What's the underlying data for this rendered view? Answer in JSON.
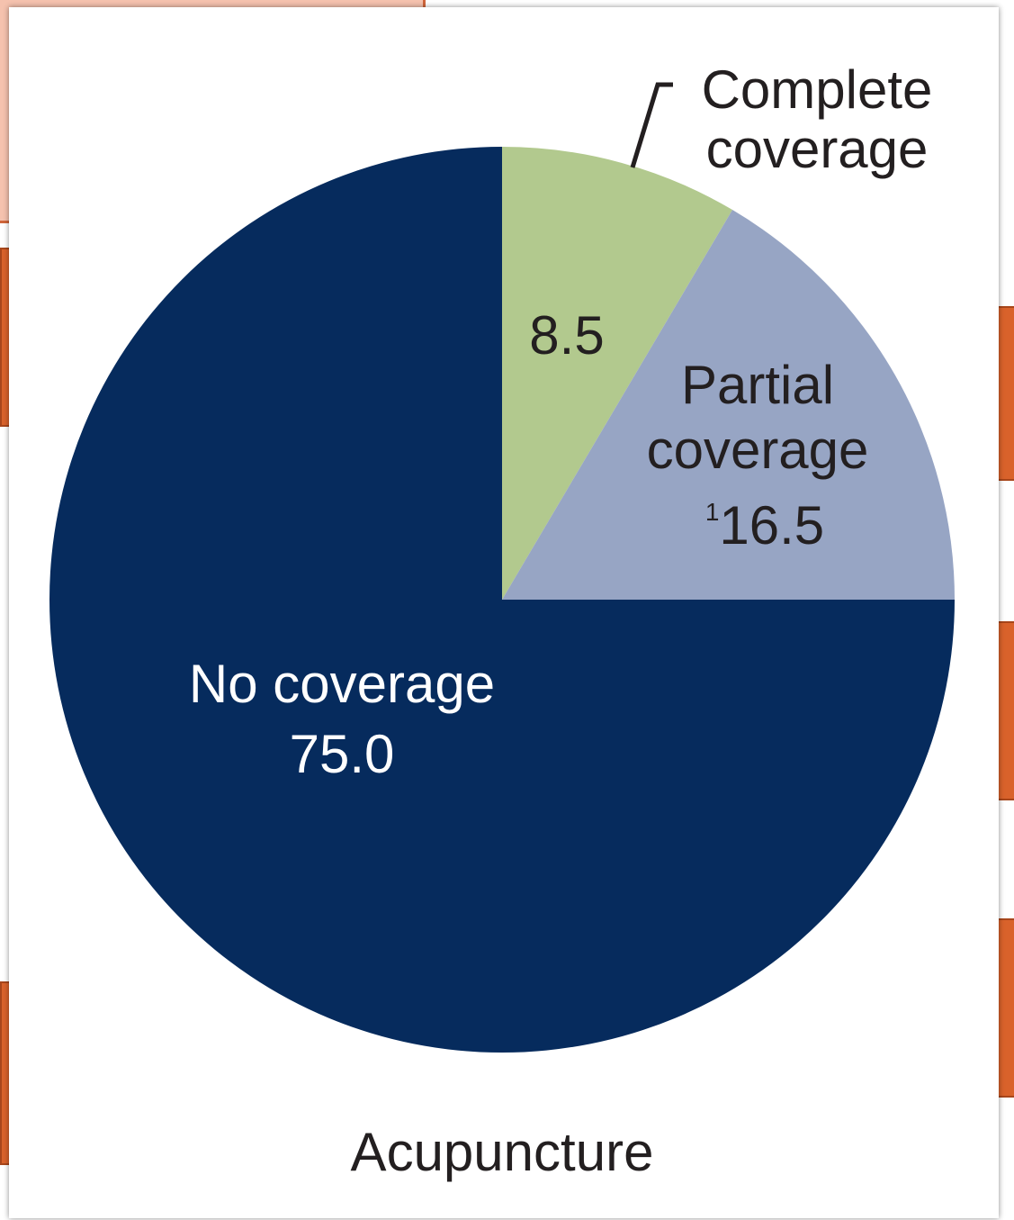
{
  "chart_data": {
    "type": "pie",
    "title": "Acupuncture",
    "slices": [
      {
        "label_lines": [
          "Complete",
          "coverage"
        ],
        "value": 8.5,
        "value_label": "8.5",
        "color": "#b2c98e",
        "label_color": "#231f20"
      },
      {
        "label_lines": [
          "Partial",
          "coverage"
        ],
        "value": 16.5,
        "value_label": "16.5",
        "footnote": "1",
        "color": "#97a5c4",
        "label_color": "#231f20"
      },
      {
        "label_lines": [
          "No coverage"
        ],
        "value": 75.0,
        "value_label": "75.0",
        "color": "#062b5d",
        "label_color": "#ffffff"
      }
    ],
    "start_angle_deg": 0,
    "direction": "clockwise",
    "legend": "none"
  },
  "colors": {
    "background_callout": "#f5c2ae",
    "background_boxes": "#d9622b"
  }
}
